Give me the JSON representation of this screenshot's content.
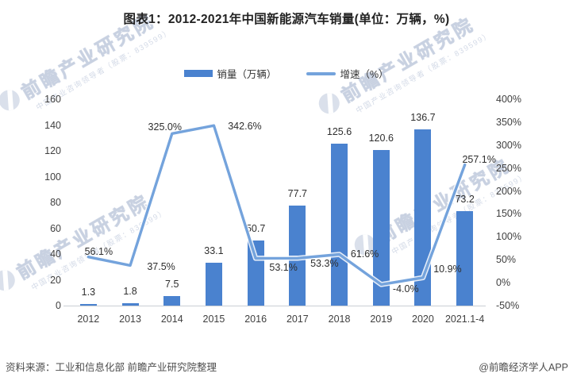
{
  "title": "图表1：2012-2021年中国新能源汽车销量(单位：万辆，%)",
  "legend": [
    {
      "label": "销量（万辆）",
      "type": "bar"
    },
    {
      "label": "增速（%）",
      "type": "line"
    }
  ],
  "chart_data": {
    "type": "bar+line combo",
    "categories": [
      "2012",
      "2013",
      "2014",
      "2015",
      "2016",
      "2017",
      "2018",
      "2019",
      "2020",
      "2021.1-4"
    ],
    "series": [
      {
        "name": "销量（万辆）",
        "type": "bar",
        "axis": "left",
        "values": [
          1.3,
          1.8,
          7.5,
          33.1,
          50.7,
          77.7,
          125.6,
          120.6,
          136.7,
          73.2
        ],
        "labels": [
          "1.3",
          "1.8",
          "7.5",
          "33.1",
          "50.7",
          "77.7",
          "125.6",
          "120.6",
          "136.7",
          "73.2"
        ]
      },
      {
        "name": "增速（%）",
        "type": "line",
        "axis": "right",
        "values": [
          56.1,
          37.5,
          325.0,
          342.6,
          53.1,
          53.3,
          61.6,
          -4.0,
          10.9,
          257.1
        ],
        "labels": [
          "56.1%",
          "37.5%",
          "325.0%",
          "342.6%",
          "53.1%",
          "53.3%",
          "61.6%",
          "-4.0%",
          "10.9%",
          "257.1%"
        ]
      }
    ],
    "left_axis": {
      "min": 0,
      "max": 160,
      "step": 20,
      "ticks": [
        "0",
        "20",
        "40",
        "60",
        "80",
        "100",
        "120",
        "140",
        "160"
      ]
    },
    "right_axis": {
      "min": -50,
      "max": 400,
      "step": 50,
      "ticks": [
        "-50%",
        "0%",
        "50%",
        "100%",
        "150%",
        "200%",
        "250%",
        "300%",
        "350%",
        "400%"
      ]
    },
    "grid": false,
    "legend_position": "top-center"
  },
  "colors": {
    "bar": "#4a82cf",
    "line": "#74a3dc",
    "watermark": "#aebbd3"
  },
  "watermark": {
    "text": "前瞻产业研究院",
    "subtext": "中国产业咨询领导者（股票：839599）"
  },
  "footer": {
    "source": "资料来源：工业和信息化部 前瞻产业研究院整理",
    "credit": "@前瞻经济学人APP"
  }
}
